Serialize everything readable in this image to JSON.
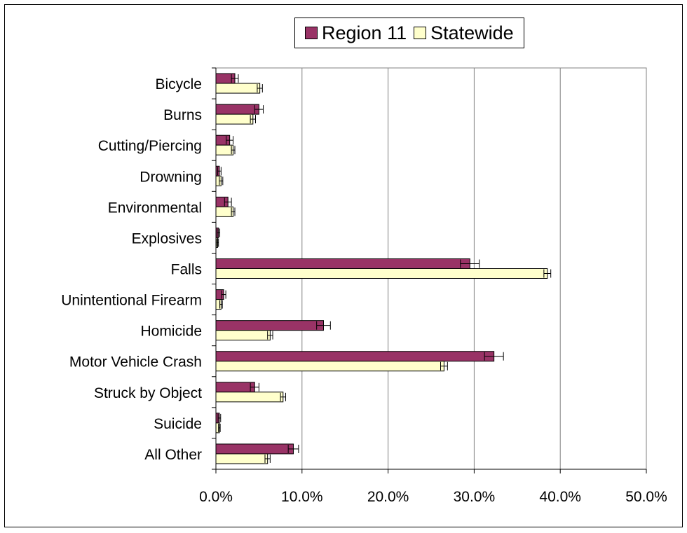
{
  "chart_data": {
    "type": "bar",
    "orientation": "horizontal",
    "categories": [
      "Bicycle",
      "Burns",
      "Cutting/Piercing",
      "Drowning",
      "Environmental",
      "Explosives",
      "Falls",
      "Unintentional Firearm",
      "Homicide",
      "Motor Vehicle Crash",
      "Struck by Object",
      "Suicide",
      "All Other"
    ],
    "series": [
      {
        "name": "Region 11",
        "color": "#993366",
        "values": [
          2.2,
          5.0,
          1.6,
          0.4,
          1.4,
          0.3,
          29.5,
          0.9,
          12.5,
          32.3,
          4.5,
          0.4,
          9.0
        ],
        "error": [
          0.4,
          0.5,
          0.4,
          0.2,
          0.4,
          0.15,
          1.1,
          0.25,
          0.8,
          1.1,
          0.5,
          0.15,
          0.6
        ]
      },
      {
        "name": "Statewide",
        "color": "#FFFFCC",
        "values": [
          5.1,
          4.3,
          2.0,
          0.6,
          2.0,
          0.2,
          38.5,
          0.6,
          6.3,
          26.5,
          7.8,
          0.4,
          6.0
        ],
        "error": [
          0.3,
          0.3,
          0.2,
          0.2,
          0.2,
          0.1,
          0.4,
          0.15,
          0.3,
          0.4,
          0.3,
          0.1,
          0.3
        ]
      }
    ],
    "xlim": [
      0,
      50
    ],
    "xticks": [
      "0.0%",
      "10.0%",
      "20.0%",
      "30.0%",
      "40.0%",
      "50.0%"
    ],
    "grid": "vertical",
    "legend_position": "top"
  }
}
